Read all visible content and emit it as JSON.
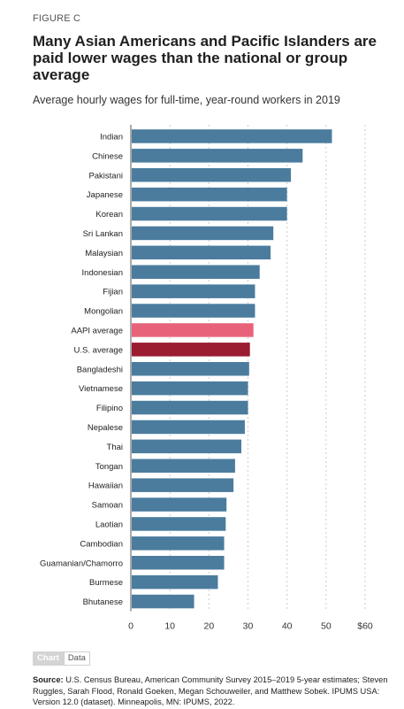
{
  "figure_label": "FIGURE C",
  "title": "Many Asian Americans and Pacific Islanders are paid lower wages than the national or group average",
  "subtitle": "Average hourly wages for full-time, year-round workers in 2019",
  "tabs": {
    "chart": "Chart",
    "data": "Data"
  },
  "source_label": "Source:",
  "source_text": "U.S. Census Bureau, American Community Survey 2015–2019 5-year estimates; Steven Ruggles, Sarah Flood, Ronald Goeken, Megan Schouweiler, and Matthew Sobek. IPUMS USA: Version 12.0 (dataset). Minneapolis, MN: IPUMS, 2022.",
  "colors": {
    "default": "#4b7c9e",
    "aapi": "#e8637a",
    "us": "#9b1b30",
    "grid": "#cccccc"
  },
  "chart_data": {
    "type": "bar",
    "orientation": "horizontal",
    "categories": [
      "Indian",
      "Chinese",
      "Pakistani",
      "Japanese",
      "Korean",
      "Sri Lankan",
      "Malaysian",
      "Indonesian",
      "Fijian",
      "Mongolian",
      "AAPI average",
      "U.S. average",
      "Bangladeshi",
      "Vietnamese",
      "Filipino",
      "Nepalese",
      "Thai",
      "Tongan",
      "Hawaiian",
      "Samoan",
      "Laotian",
      "Cambodian",
      "Guamanian/Chamorro",
      "Burmese",
      "Bhutanese"
    ],
    "values": [
      51.5,
      44,
      41,
      40,
      40,
      36.5,
      35.8,
      33,
      31.8,
      31.8,
      31.4,
      30.5,
      30.3,
      30,
      30,
      29.2,
      28.3,
      26.7,
      26.3,
      24.5,
      24.3,
      23.9,
      23.9,
      22.3,
      16.2
    ],
    "highlight": {
      "AAPI average": "aapi",
      "U.S. average": "us"
    },
    "xlim": [
      0,
      60
    ],
    "xticks": [
      0,
      10,
      20,
      30,
      40,
      50,
      60
    ],
    "xtick_labels": [
      "0",
      "10",
      "20",
      "30",
      "40",
      "50",
      "$60"
    ],
    "grid": true
  }
}
